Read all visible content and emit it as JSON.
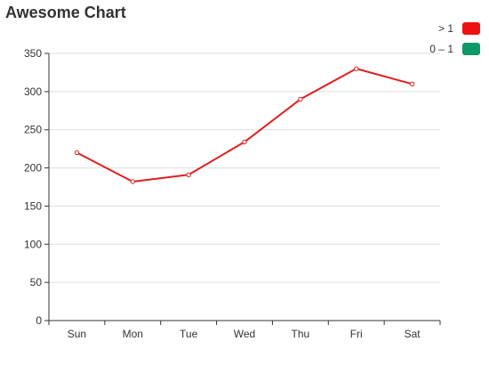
{
  "chart_data": {
    "type": "line",
    "title": "Awesome Chart",
    "categories": [
      "Sun",
      "Mon",
      "Tue",
      "Wed",
      "Thu",
      "Fri",
      "Sat"
    ],
    "series": [
      {
        "values": [
          220,
          182,
          191,
          234,
          290,
          330,
          310
        ],
        "color": "#e01f1f"
      }
    ],
    "ylim": [
      0,
      350
    ],
    "yticks": [
      0,
      50,
      100,
      150,
      200,
      250,
      300,
      350
    ],
    "grid": "horizontal",
    "legend": {
      "placement": "top-right",
      "items": [
        {
          "label": "> 1",
          "color": "#ee1111"
        },
        {
          "label": "0 – 1",
          "color": "#0f9966"
        }
      ]
    }
  }
}
